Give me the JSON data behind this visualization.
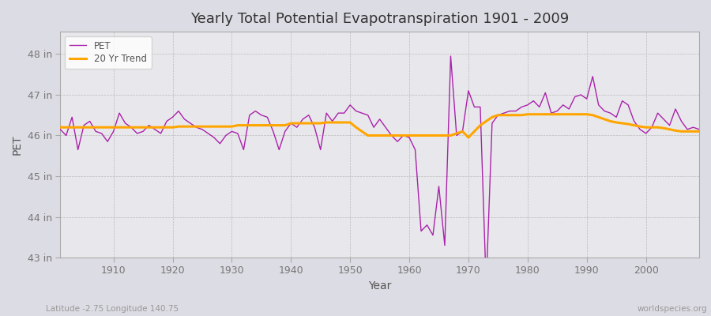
{
  "title": "Yearly Total Potential Evapotranspiration 1901 - 2009",
  "xlabel": "Year",
  "ylabel": "PET",
  "subtitle_left": "Latitude -2.75 Longitude 140.75",
  "subtitle_right": "worldspecies.org",
  "pet_color": "#AA22AA",
  "trend_color": "#FFA500",
  "plot_bg_color": "#E8E8EC",
  "fig_bg_color": "#DCDCE4",
  "ylim": [
    43.0,
    48.55
  ],
  "xlim": [
    1901,
    2009
  ],
  "yticks": [
    43,
    44,
    45,
    46,
    47,
    48
  ],
  "ytick_labels": [
    "43 in",
    "44 in",
    "45 in",
    "46 in",
    "47 in",
    "48 in"
  ],
  "xticks": [
    1910,
    1920,
    1930,
    1940,
    1950,
    1960,
    1970,
    1980,
    1990,
    2000
  ],
  "years": [
    1901,
    1902,
    1903,
    1904,
    1905,
    1906,
    1907,
    1908,
    1909,
    1910,
    1911,
    1912,
    1913,
    1914,
    1915,
    1916,
    1917,
    1918,
    1919,
    1920,
    1921,
    1922,
    1923,
    1924,
    1925,
    1926,
    1927,
    1928,
    1929,
    1930,
    1931,
    1932,
    1933,
    1934,
    1935,
    1936,
    1937,
    1938,
    1939,
    1940,
    1941,
    1942,
    1943,
    1944,
    1945,
    1946,
    1947,
    1948,
    1949,
    1950,
    1951,
    1952,
    1953,
    1954,
    1955,
    1956,
    1957,
    1958,
    1959,
    1960,
    1961,
    1962,
    1963,
    1964,
    1965,
    1966,
    1967,
    1968,
    1969,
    1970,
    1971,
    1972,
    1973,
    1974,
    1975,
    1976,
    1977,
    1978,
    1979,
    1980,
    1981,
    1982,
    1983,
    1984,
    1985,
    1986,
    1987,
    1988,
    1989,
    1990,
    1991,
    1992,
    1993,
    1994,
    1995,
    1996,
    1997,
    1998,
    1999,
    2000,
    2001,
    2002,
    2003,
    2004,
    2005,
    2006,
    2007,
    2008,
    2009
  ],
  "pet": [
    46.15,
    46.0,
    46.45,
    45.65,
    46.25,
    46.35,
    46.1,
    46.05,
    45.85,
    46.1,
    46.55,
    46.3,
    46.2,
    46.05,
    46.1,
    46.25,
    46.15,
    46.05,
    46.35,
    46.45,
    46.6,
    46.4,
    46.3,
    46.2,
    46.15,
    46.05,
    45.95,
    45.8,
    46.0,
    46.1,
    46.05,
    45.65,
    46.5,
    46.6,
    46.5,
    46.45,
    46.1,
    45.65,
    46.1,
    46.3,
    46.2,
    46.4,
    46.5,
    46.2,
    45.65,
    46.55,
    46.35,
    46.55,
    46.55,
    46.75,
    46.6,
    46.55,
    46.5,
    46.2,
    46.4,
    46.2,
    46.0,
    45.85,
    46.0,
    45.95,
    45.65,
    43.65,
    43.8,
    43.55,
    44.75,
    43.3,
    47.95,
    46.0,
    46.1,
    47.1,
    46.7,
    46.7,
    42.3,
    46.3,
    46.5,
    46.55,
    46.6,
    46.6,
    46.7,
    46.75,
    46.85,
    46.7,
    47.05,
    46.55,
    46.6,
    46.75,
    46.65,
    46.95,
    47.0,
    46.9,
    47.45,
    46.75,
    46.6,
    46.55,
    46.45,
    46.85,
    46.75,
    46.35,
    46.15,
    46.05,
    46.2,
    46.55,
    46.4,
    46.25,
    46.65,
    46.35,
    46.15,
    46.2,
    46.15
  ],
  "trend": [
    46.2,
    46.2,
    46.2,
    46.2,
    46.2,
    46.2,
    46.2,
    46.2,
    46.2,
    46.2,
    46.2,
    46.2,
    46.2,
    46.2,
    46.2,
    46.2,
    46.2,
    46.2,
    46.2,
    46.2,
    46.22,
    46.22,
    46.22,
    46.22,
    46.22,
    46.22,
    46.22,
    46.22,
    46.22,
    46.22,
    46.25,
    46.25,
    46.25,
    46.25,
    46.25,
    46.25,
    46.25,
    46.25,
    46.25,
    46.3,
    46.3,
    46.3,
    46.3,
    46.3,
    46.3,
    46.32,
    46.32,
    46.32,
    46.32,
    46.32,
    46.2,
    46.1,
    46.0,
    46.0,
    46.0,
    46.0,
    46.0,
    46.0,
    46.0,
    46.0,
    46.0,
    46.0,
    46.0,
    46.0,
    46.0,
    46.0,
    46.0,
    46.05,
    46.1,
    45.95,
    46.1,
    46.25,
    46.35,
    46.45,
    46.5,
    46.5,
    46.5,
    46.5,
    46.5,
    46.52,
    46.52,
    46.52,
    46.52,
    46.52,
    46.52,
    46.52,
    46.52,
    46.52,
    46.52,
    46.52,
    46.5,
    46.45,
    46.4,
    46.35,
    46.32,
    46.3,
    46.28,
    46.25,
    46.22,
    46.2,
    46.2,
    46.2,
    46.18,
    46.15,
    46.12,
    46.1,
    46.1,
    46.1,
    46.1
  ]
}
